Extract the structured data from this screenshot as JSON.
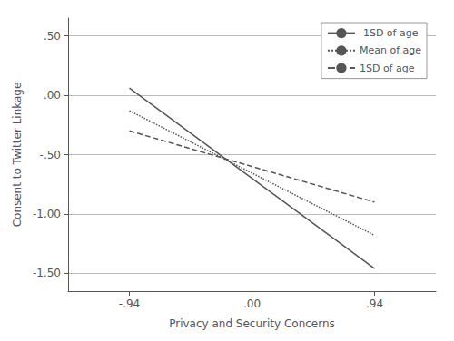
{
  "chart_data": {
    "type": "line",
    "xlabel": "Privacy and Security Concerns",
    "ylabel": "Consent to Twitter Linkage",
    "x": [
      -0.94,
      0.94
    ],
    "series": [
      {
        "name": "-1SD of age",
        "line_style": "solid",
        "values": [
          0.06,
          -1.46
        ]
      },
      {
        "name": "Mean of age",
        "line_style": "dotted",
        "values": [
          -0.13,
          -1.18
        ]
      },
      {
        "name": "1SD of age",
        "line_style": "dashed",
        "values": [
          -0.3,
          -0.9
        ]
      }
    ],
    "color": "#555555",
    "xlim": [
      -1.41,
      1.41
    ],
    "xticks": [
      {
        "value": -0.94,
        "label": "-.94"
      },
      {
        "value": 0.0,
        "label": ".00"
      },
      {
        "value": 0.94,
        "label": ".94"
      }
    ],
    "ylim": [
      -1.65,
      0.65
    ],
    "yticks": [
      {
        "value": 0.5,
        "label": ".50"
      },
      {
        "value": 0.0,
        "label": ".00"
      },
      {
        "value": -0.5,
        "label": "-.50"
      },
      {
        "value": -1.0,
        "label": "-1.00"
      },
      {
        "value": -1.5,
        "label": "-1.50"
      }
    ],
    "grid": true,
    "legend": "upper right"
  }
}
